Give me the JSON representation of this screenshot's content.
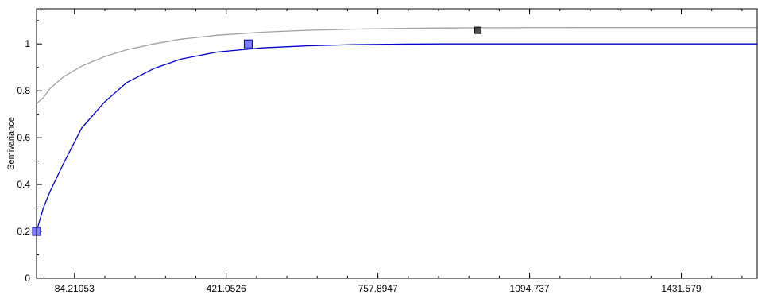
{
  "chart_data": {
    "type": "scatter",
    "ylabel": "Semivariance",
    "xlabel": "",
    "title": "",
    "xlim": [
      0,
      1600
    ],
    "ylim": [
      0,
      1.15
    ],
    "x_ticks": [
      84.21053,
      421.0526,
      757.8947,
      1094.737,
      1431.579
    ],
    "x_tick_labels": [
      "84.21053",
      "421.0526",
      "757.8947",
      "1094.737",
      "1431.579"
    ],
    "y_ticks": [
      0,
      0.2,
      0.4,
      0.6,
      0.8,
      1
    ],
    "y_tick_labels": [
      "0",
      "0.2",
      "0.4",
      "0.6",
      "0.8",
      "1"
    ],
    "grid": false,
    "series": [
      {
        "kind": "line",
        "color": "#a0a0a0",
        "points": [
          [
            0,
            0.745
          ],
          [
            15,
            0.77
          ],
          [
            30,
            0.81
          ],
          [
            60,
            0.86
          ],
          [
            100,
            0.905
          ],
          [
            150,
            0.945
          ],
          [
            200,
            0.975
          ],
          [
            260,
            1.0
          ],
          [
            320,
            1.02
          ],
          [
            400,
            1.037
          ],
          [
            500,
            1.05
          ],
          [
            600,
            1.058
          ],
          [
            700,
            1.063
          ],
          [
            800,
            1.066
          ],
          [
            900,
            1.068
          ],
          [
            1000,
            1.069
          ],
          [
            1200,
            1.07
          ],
          [
            1400,
            1.07
          ],
          [
            1600,
            1.07
          ]
        ]
      },
      {
        "kind": "line",
        "color": "#0000cc",
        "points": [
          [
            0,
            0.2
          ],
          [
            15,
            0.3
          ],
          [
            30,
            0.37
          ],
          [
            60,
            0.49
          ],
          [
            100,
            0.64
          ],
          [
            150,
            0.75
          ],
          [
            200,
            0.835
          ],
          [
            260,
            0.895
          ],
          [
            320,
            0.935
          ],
          [
            400,
            0.965
          ],
          [
            500,
            0.983
          ],
          [
            600,
            0.992
          ],
          [
            700,
            0.997
          ],
          [
            800,
            0.999
          ],
          [
            900,
            1.0
          ],
          [
            1200,
            1.0
          ],
          [
            1600,
            1.0
          ]
        ]
      },
      {
        "kind": "points",
        "marker": "square",
        "color": "#8080ff",
        "edge_color": "#0000aa",
        "points": [
          [
            0,
            0.2
          ],
          [
            470,
            1.0
          ]
        ]
      },
      {
        "kind": "points",
        "marker": "square",
        "color": "#505050",
        "edge_color": "#000000",
        "points": [
          [
            980,
            1.058
          ]
        ]
      }
    ]
  }
}
